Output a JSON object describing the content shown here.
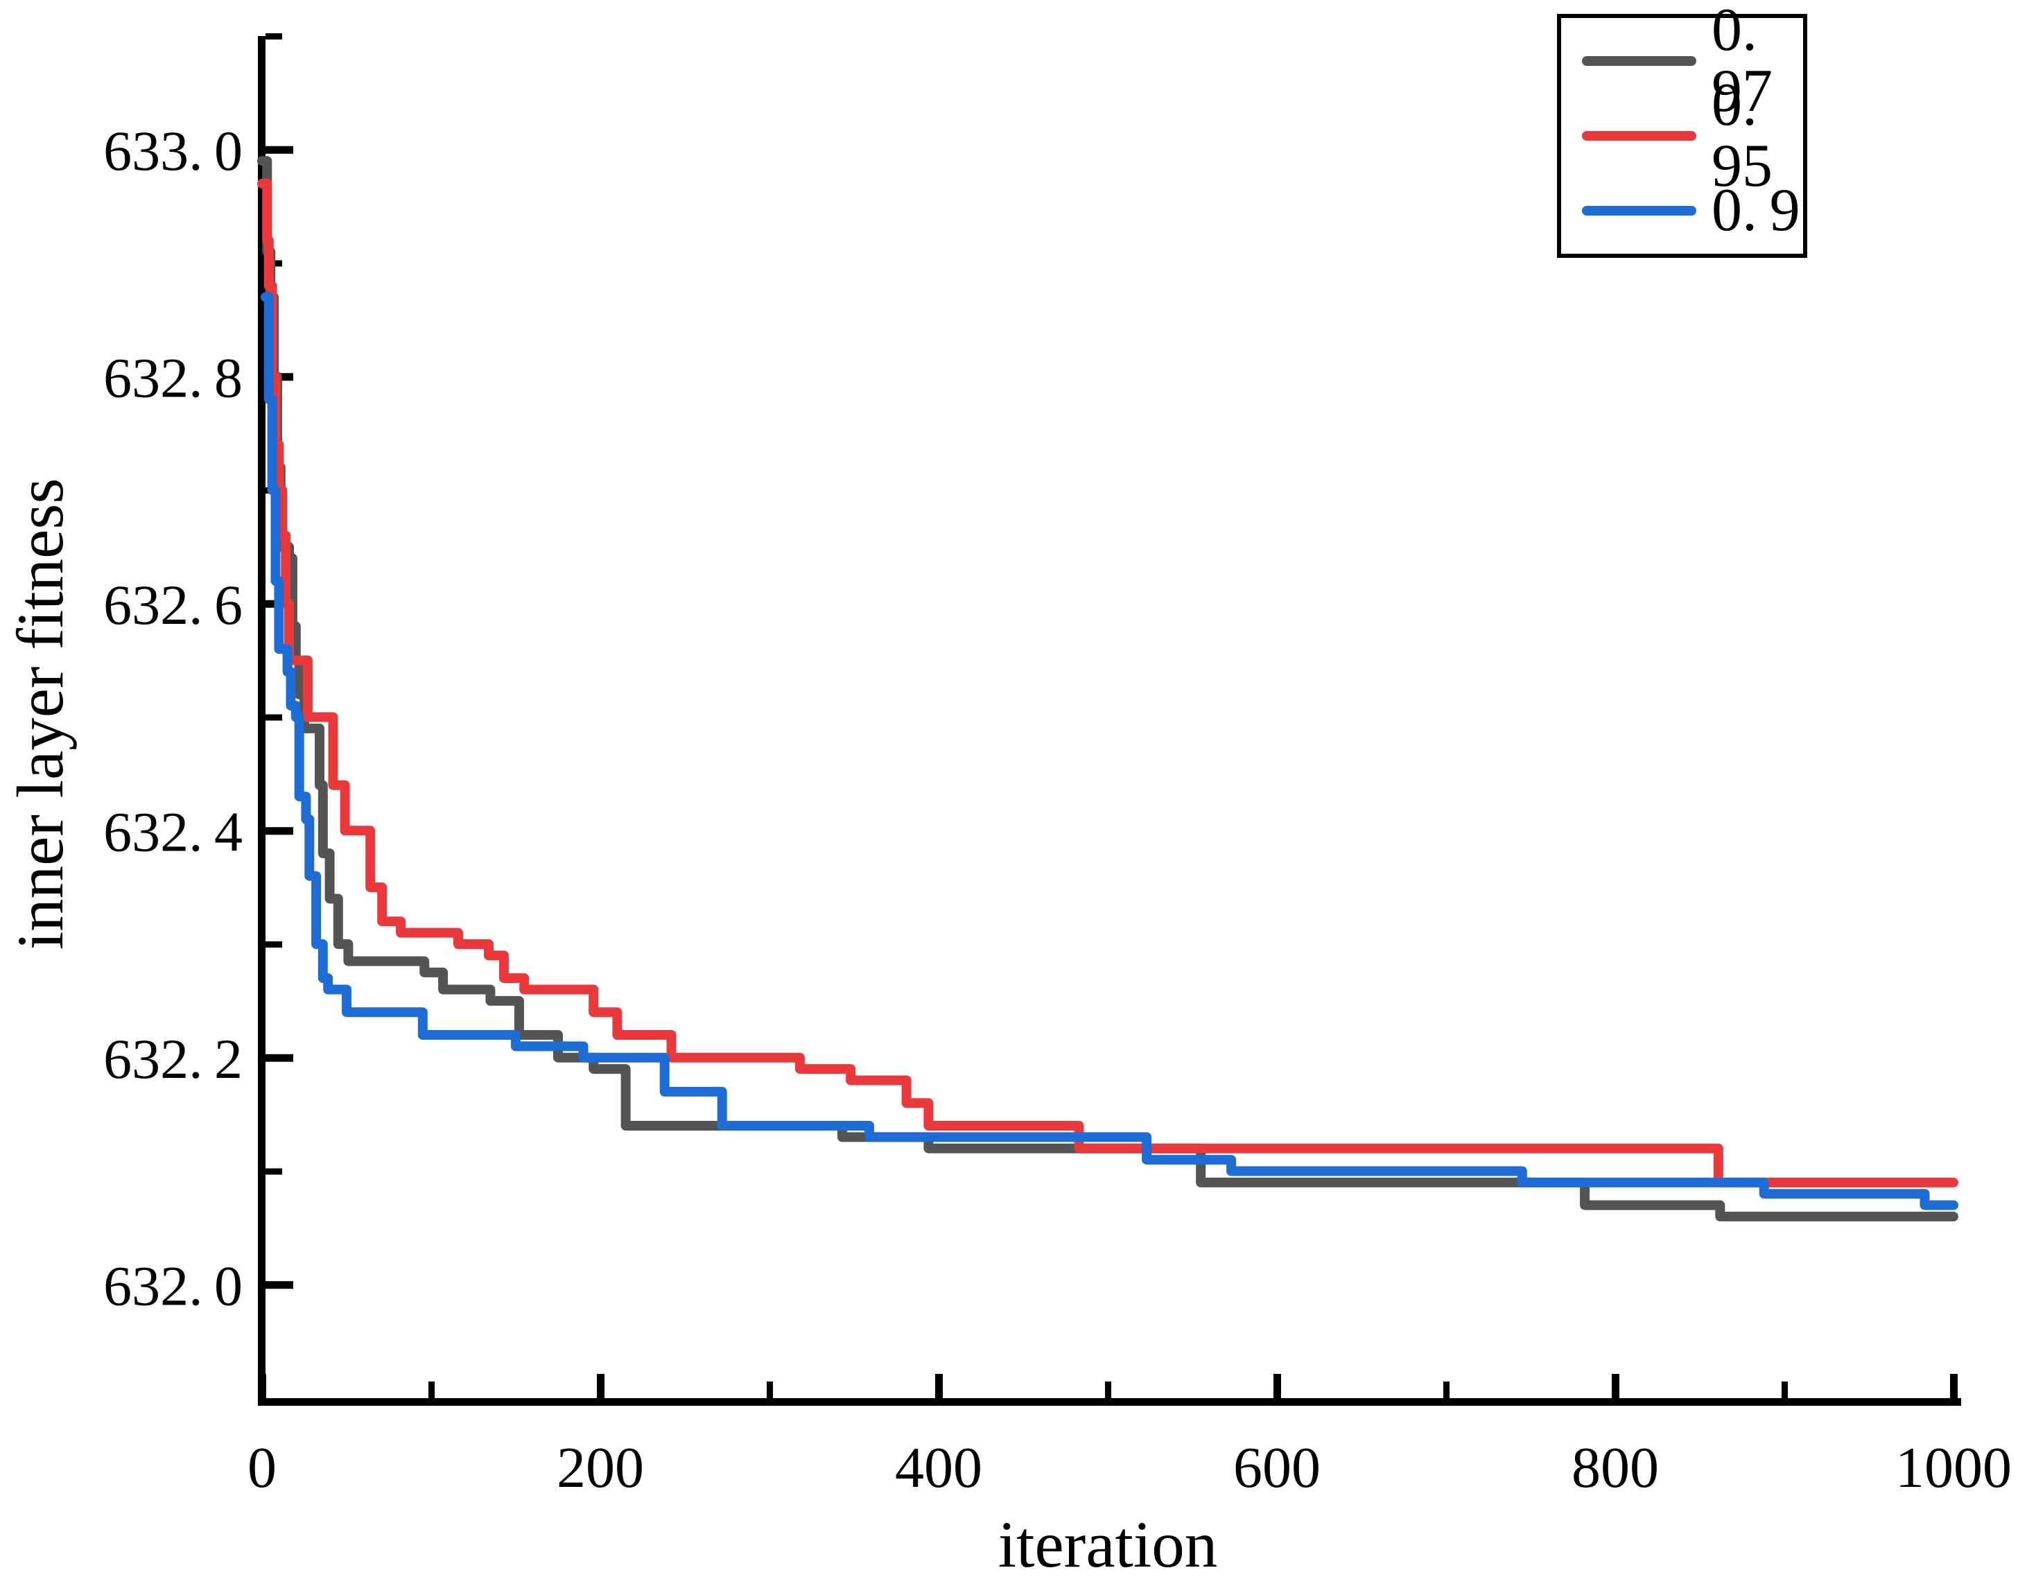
{
  "figure": {
    "background": "#ffffff",
    "axis_color": "#000000"
  },
  "chart_data": {
    "type": "line",
    "subtype": "step-after",
    "title": "",
    "xlabel": "iteration",
    "ylabel": "inner layer fitness",
    "xlim": [
      0,
      1000
    ],
    "ylim": [
      631.9,
      633.1
    ],
    "x_major_ticks": [
      0,
      200,
      400,
      600,
      800,
      1000
    ],
    "x_minor_ticks": [
      100,
      300,
      500,
      700,
      900
    ],
    "y_major_ticks": [
      632.0,
      632.2,
      632.4,
      632.6,
      632.8,
      633.0
    ],
    "y_minor_ticks": [
      632.1,
      632.3,
      632.5,
      632.7,
      632.9,
      633.1
    ],
    "grid": false,
    "legend_position": "upper-right",
    "series": [
      {
        "name": "0.97",
        "color": "#545454",
        "points": [
          [
            0,
            632.99
          ],
          [
            3,
            632.91
          ],
          [
            5,
            632.87
          ],
          [
            7,
            632.8
          ],
          [
            9,
            632.72
          ],
          [
            11,
            632.65
          ],
          [
            16,
            632.64
          ],
          [
            18,
            632.58
          ],
          [
            20,
            632.55
          ],
          [
            22,
            632.52
          ],
          [
            25,
            632.49
          ],
          [
            34,
            632.44
          ],
          [
            36,
            632.38
          ],
          [
            40,
            632.34
          ],
          [
            45,
            632.3
          ],
          [
            51,
            632.285
          ],
          [
            96,
            632.275
          ],
          [
            107,
            632.26
          ],
          [
            135,
            632.25
          ],
          [
            152,
            632.22
          ],
          [
            175,
            632.2
          ],
          [
            196,
            632.19
          ],
          [
            215,
            632.14
          ],
          [
            343,
            632.13
          ],
          [
            394,
            632.12
          ],
          [
            555,
            632.09
          ],
          [
            782,
            632.07
          ],
          [
            862,
            632.06
          ],
          [
            1000,
            632.06
          ]
        ]
      },
      {
        "name": "0.95",
        "color": "#e9393c",
        "points": [
          [
            0,
            632.97
          ],
          [
            3,
            632.92
          ],
          [
            4,
            632.88
          ],
          [
            6,
            632.8
          ],
          [
            8,
            632.74
          ],
          [
            10,
            632.7
          ],
          [
            12,
            632.66
          ],
          [
            14,
            632.6
          ],
          [
            16,
            632.55
          ],
          [
            27,
            632.5
          ],
          [
            42,
            632.44
          ],
          [
            49,
            632.4
          ],
          [
            64,
            632.35
          ],
          [
            71,
            632.32
          ],
          [
            82,
            632.31
          ],
          [
            116,
            632.3
          ],
          [
            134,
            632.29
          ],
          [
            143,
            632.27
          ],
          [
            155,
            632.26
          ],
          [
            196,
            632.24
          ],
          [
            210,
            632.22
          ],
          [
            242,
            632.2
          ],
          [
            318,
            632.19
          ],
          [
            348,
            632.18
          ],
          [
            381,
            632.16
          ],
          [
            394,
            632.14
          ],
          [
            483,
            632.12
          ],
          [
            861,
            632.09
          ],
          [
            1000,
            632.09
          ]
        ]
      },
      {
        "name": "0.9",
        "color": "#1e6cd6",
        "points": [
          [
            2,
            632.87
          ],
          [
            4,
            632.78
          ],
          [
            6,
            632.7
          ],
          [
            8,
            632.62
          ],
          [
            10,
            632.56
          ],
          [
            15,
            632.54
          ],
          [
            17,
            632.51
          ],
          [
            20,
            632.5
          ],
          [
            22,
            632.43
          ],
          [
            26,
            632.41
          ],
          [
            28,
            632.36
          ],
          [
            32,
            632.3
          ],
          [
            36,
            632.27
          ],
          [
            39,
            632.26
          ],
          [
            50,
            632.24
          ],
          [
            95,
            632.22
          ],
          [
            150,
            632.21
          ],
          [
            190,
            632.2
          ],
          [
            238,
            632.17
          ],
          [
            272,
            632.14
          ],
          [
            359,
            632.13
          ],
          [
            523,
            632.11
          ],
          [
            573,
            632.1
          ],
          [
            745,
            632.09
          ],
          [
            888,
            632.08
          ],
          [
            983,
            632.07
          ],
          [
            1000,
            632.07
          ]
        ]
      }
    ]
  }
}
